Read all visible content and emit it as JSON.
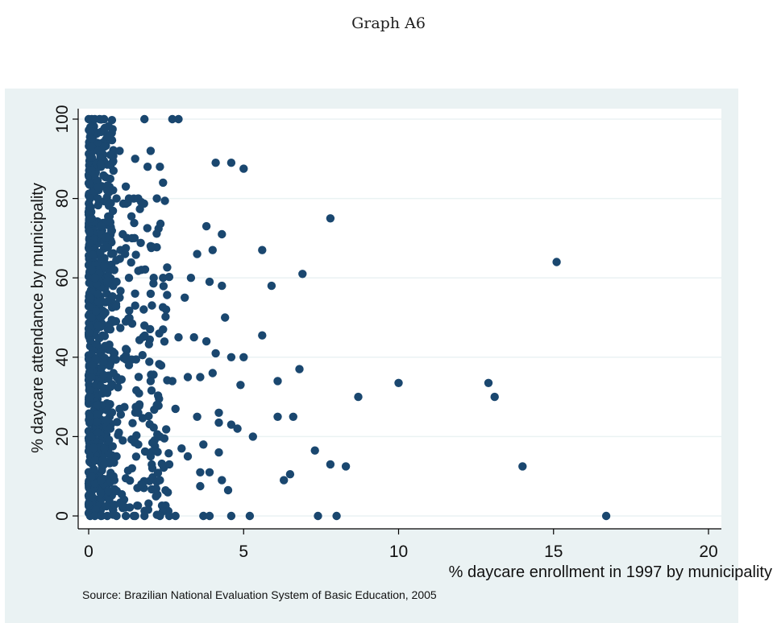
{
  "figure_title": "Graph A6",
  "note": "Source: Brazilian National Evaluation System of Basic Education, 2005",
  "colors": {
    "outer_background": "#eaf2f3",
    "plot_background": "#ffffff",
    "gridline": "#eaf2f3",
    "marker": "#1a476f",
    "axis": "#000000"
  },
  "chart_data": {
    "type": "scatter",
    "xlabel": "% daycare enrollment in 1997 by municipality",
    "ylabel": "% daycare attendance by municipality",
    "xlim": [
      0,
      20
    ],
    "ylim": [
      0,
      100
    ],
    "xticks": [
      0,
      5,
      10,
      15,
      20
    ],
    "yticks": [
      0,
      20,
      40,
      60,
      80,
      100
    ],
    "grid": true,
    "marker": "filled-circle",
    "x": [
      0,
      0.1,
      0.2,
      0.35,
      0.5,
      1.8,
      2.7,
      2.9,
      0.1,
      0.3,
      0.5,
      0.7,
      1.0,
      1.5,
      2.0,
      2.3,
      0.1,
      0.2,
      0.4,
      0.8,
      1.2,
      1.9,
      2.4,
      4.1,
      4.6,
      5.0,
      0.05,
      0.3,
      0.6,
      0.9,
      1.3,
      1.6,
      2.2,
      7.8,
      0.1,
      0.4,
      0.7,
      1.1,
      1.4,
      2.0,
      3.5,
      3.8,
      4.0,
      4.3,
      5.6,
      0.1,
      0.2,
      0.5,
      0.9,
      1.3,
      1.7,
      2.1,
      2.4,
      3.3,
      3.9,
      4.3,
      5.9,
      6.9,
      15.1,
      0.05,
      0.3,
      0.6,
      1.0,
      1.5,
      2.0,
      2.5,
      3.1,
      4.4,
      5.6,
      0.1,
      0.3,
      0.7,
      1.2,
      1.8,
      2.4,
      2.9,
      3.4,
      3.8,
      4.1,
      4.6,
      5.0,
      6.8,
      0.1,
      0.4,
      0.8,
      1.3,
      2.0,
      2.7,
      3.2,
      3.6,
      4.0,
      4.9,
      6.1,
      10.0,
      12.9,
      0.05,
      0.3,
      0.6,
      1.0,
      1.6,
      2.2,
      2.8,
      3.5,
      4.2,
      4.8,
      6.1,
      6.6,
      8.7,
      13.1,
      0.1,
      0.3,
      0.7,
      1.1,
      1.6,
      2.3,
      3.0,
      3.7,
      4.2,
      4.6,
      5.3,
      0.05,
      0.2,
      0.5,
      0.9,
      1.4,
      2.0,
      2.6,
      3.2,
      3.6,
      3.9,
      4.2,
      7.3,
      7.8,
      8.3,
      14.0,
      0.1,
      0.4,
      0.8,
      1.2,
      1.7,
      2.3,
      3.6,
      4.3,
      4.5,
      6.3,
      6.5,
      0,
      0.05,
      0.2,
      0.4,
      0.6,
      0.9,
      1.2,
      1.5,
      1.8,
      2.3,
      2.6,
      2.8,
      3.7,
      3.9,
      4.6,
      5.2,
      7.4,
      8.0,
      16.7
    ],
    "y": [
      100,
      100,
      100,
      100,
      100,
      100,
      100,
      100,
      93,
      92,
      93,
      91,
      92,
      90,
      92,
      88,
      87,
      86,
      88,
      87,
      83,
      88,
      84,
      89,
      89,
      87.5,
      80,
      80,
      82,
      80,
      80,
      80,
      80,
      75,
      75,
      73,
      74,
      71,
      70,
      68,
      66,
      73,
      67,
      71,
      67,
      62,
      60,
      63,
      59,
      60,
      62,
      60,
      60,
      60,
      59,
      58,
      58,
      61,
      64,
      55,
      56,
      54,
      55,
      53,
      56,
      52,
      55,
      50,
      45.5,
      50,
      48,
      47,
      49,
      48,
      47,
      45,
      45,
      44,
      41,
      40,
      40,
      37,
      35,
      37,
      36,
      38,
      34,
      34,
      35,
      35,
      36,
      33,
      34,
      33.5,
      33.5,
      30,
      28,
      31,
      27,
      26,
      28,
      27,
      25,
      26,
      22,
      25,
      25,
      30,
      30,
      20,
      21,
      22,
      19,
      18,
      20,
      17,
      18,
      23.5,
      23,
      20,
      15,
      14,
      13,
      15,
      12,
      15,
      13,
      15,
      11,
      11,
      16,
      16.5,
      13,
      12.5,
      12.5,
      10,
      9,
      10,
      9.5,
      8,
      9,
      7.5,
      9,
      6.5,
      9,
      10.5,
      3,
      0,
      0,
      0,
      0,
      0,
      0,
      0,
      0,
      0,
      0,
      0,
      0,
      0,
      0,
      0,
      0,
      0,
      0
    ],
    "dense_band": {
      "x_range": [
        0,
        0.8
      ],
      "y_range": [
        0,
        100
      ],
      "point_count": 620
    },
    "moderate_band": {
      "x_range": [
        0.8,
        2.6
      ],
      "y_range": [
        0,
        80
      ],
      "point_count": 160
    }
  }
}
